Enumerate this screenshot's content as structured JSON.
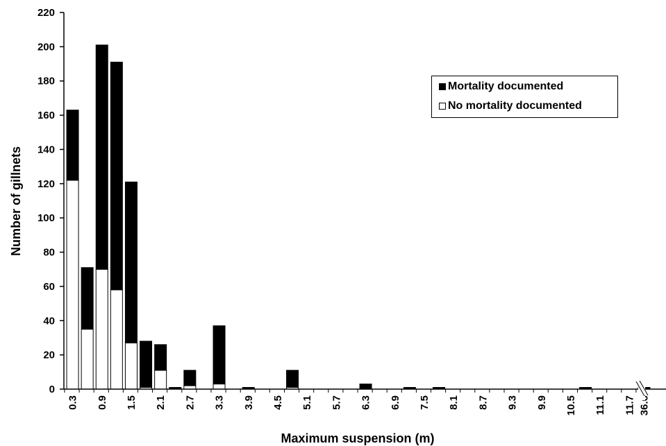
{
  "chart_data": {
    "type": "bar",
    "stacked": true,
    "categories": [
      "0.3",
      "0.6",
      "0.9",
      "1.2",
      "1.5",
      "1.8",
      "2.1",
      "2.4",
      "2.7",
      "3.0",
      "3.3",
      "3.6",
      "3.9",
      "4.2",
      "4.5",
      "4.8",
      "5.1",
      "5.4",
      "5.7",
      "6.0",
      "6.3",
      "6.6",
      "6.9",
      "7.2",
      "7.5",
      "7.8",
      "8.1",
      "8.4",
      "8.7",
      "9.0",
      "9.3",
      "9.6",
      "9.9",
      "10.2",
      "10.5",
      "10.8",
      "11.1",
      "11.4",
      "11.7",
      "36.6"
    ],
    "tick_labels": [
      "0.3",
      "",
      "0.9",
      "",
      "1.5",
      "",
      "2.1",
      "",
      "2.7",
      "",
      "3.3",
      "",
      "3.9",
      "",
      "4.5",
      "",
      "5.1",
      "",
      "5.7",
      "",
      "6.3",
      "",
      "6.9",
      "",
      "7.5",
      "",
      "8.1",
      "",
      "8.7",
      "",
      "9.3",
      "",
      "9.9",
      "",
      "10.5",
      "",
      "11.1",
      "",
      "11.7",
      "36.6"
    ],
    "series": [
      {
        "name": "No mortality documented",
        "color": "#ffffff",
        "values": [
          122,
          35,
          70,
          58,
          27,
          1,
          11,
          0,
          2,
          0,
          3,
          0,
          0,
          0,
          0,
          1,
          0,
          0,
          0,
          0,
          0,
          0,
          0,
          0,
          0,
          0,
          0,
          0,
          0,
          0,
          0,
          0,
          0,
          0,
          0,
          0,
          0,
          0,
          0,
          0
        ]
      },
      {
        "name": "Mortality documented",
        "color": "#000000",
        "values": [
          41,
          36,
          131,
          133,
          94,
          27,
          15,
          1,
          9,
          0,
          34,
          0,
          1,
          0,
          0,
          10,
          0,
          0,
          0,
          0,
          3,
          0,
          0,
          1,
          0,
          1,
          0,
          0,
          0,
          0,
          0,
          0,
          0,
          0,
          0,
          1,
          0,
          0,
          0,
          1
        ]
      }
    ],
    "xlabel": "Maximum suspension (m)",
    "ylabel": "Number of gillnets",
    "ylim": [
      0,
      220
    ],
    "yticks": [
      "0",
      "20",
      "40",
      "60",
      "80",
      "100",
      "120",
      "140",
      "160",
      "180",
      "200",
      "220"
    ],
    "grid": false,
    "legend_position": "top-right",
    "axis_break": "between 11.7 and 36.6"
  }
}
